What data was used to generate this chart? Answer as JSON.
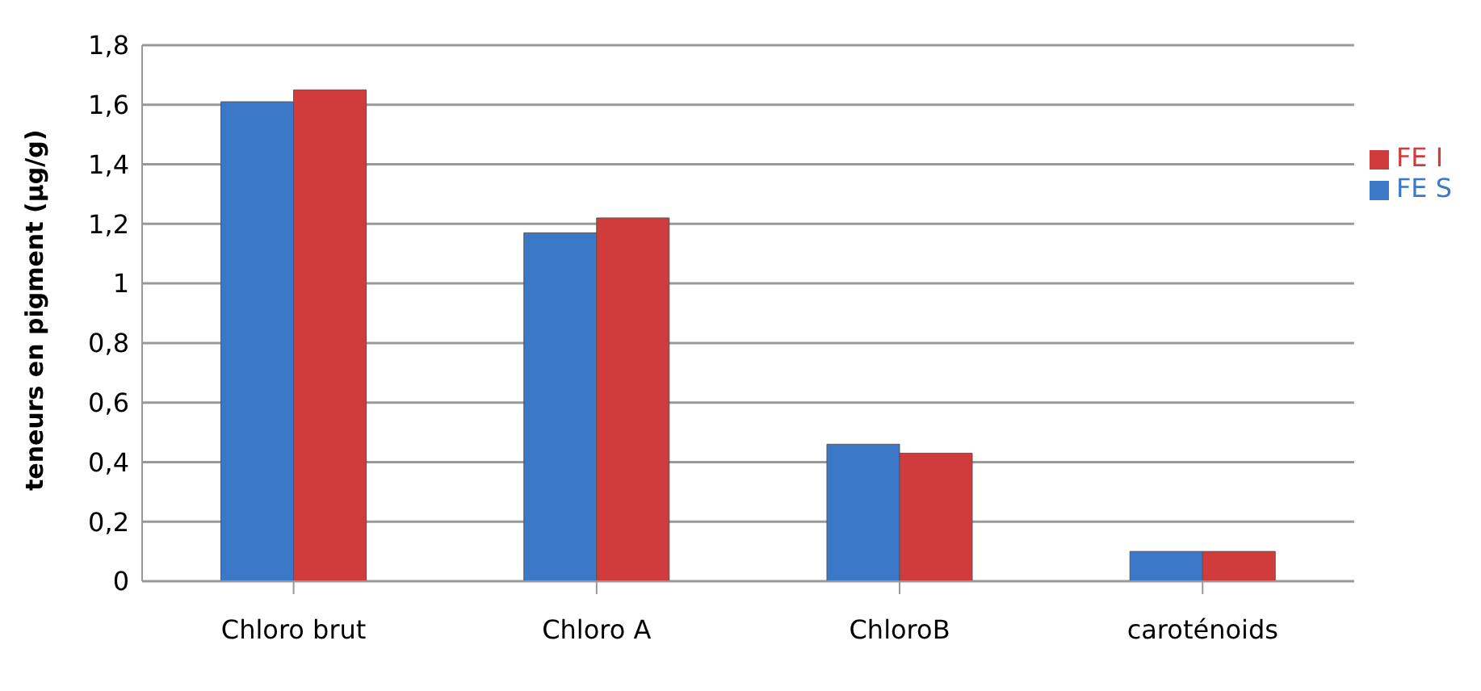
{
  "chart_data": {
    "type": "bar",
    "ylabel": "teneurs  en pigment (µg/g)",
    "categories": [
      "Chloro brut",
      "Chloro A",
      "ChloroB",
      "caroténoids"
    ],
    "series": [
      {
        "name": "FE S",
        "color": "#3c78c8",
        "values": [
          1.61,
          1.17,
          0.46,
          0.1
        ]
      },
      {
        "name": "FE I",
        "color": "#d03c3c",
        "values": [
          1.65,
          1.22,
          0.43,
          0.1
        ]
      }
    ],
    "ylim": [
      0,
      1.8
    ],
    "yticks": [
      0,
      {
        "value": 0.2,
        "label": "0,2"
      },
      {
        "value": 0.4,
        "label": "0,4"
      },
      {
        "value": 0.6,
        "label": "0,6"
      },
      {
        "value": 0.8,
        "label": "0,8"
      },
      1,
      {
        "value": 1.2,
        "label": "1,2"
      },
      {
        "value": 1.4,
        "label": "1,4"
      },
      {
        "value": 1.6,
        "label": "1,6"
      },
      {
        "value": 1.8,
        "label": "1,8"
      }
    ],
    "grid": "y",
    "legend": "right"
  }
}
